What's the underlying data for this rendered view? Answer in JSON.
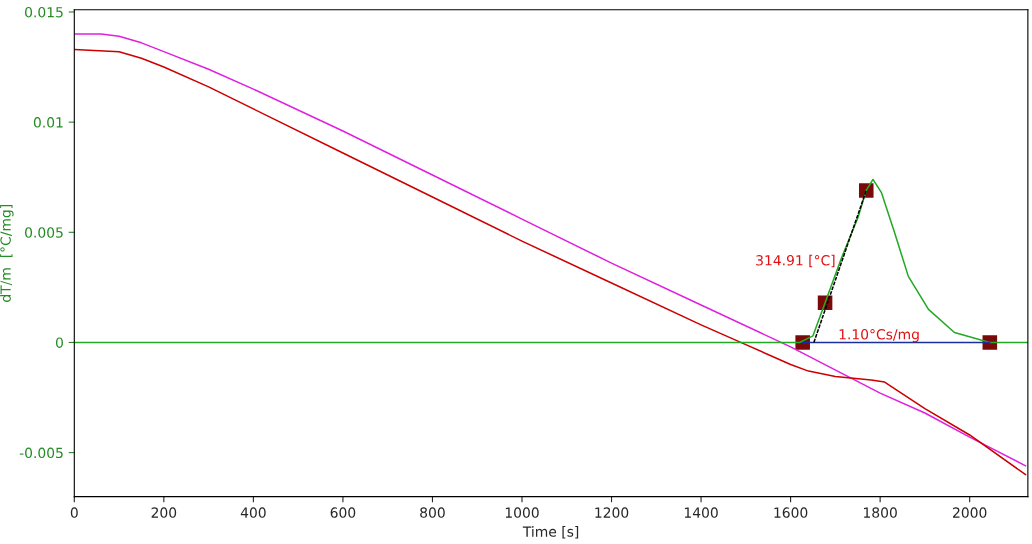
{
  "chart_data": {
    "type": "line",
    "xlabel": "Time [s]",
    "ylabel": "dT/m  [°C/mg]",
    "xlim": [
      0,
      2130
    ],
    "ylim": [
      -0.007,
      0.0151
    ],
    "xticks": [
      0,
      200,
      400,
      600,
      800,
      1000,
      1200,
      1400,
      1600,
      1800,
      2000
    ],
    "yticks": [
      {
        "value": -0.005,
        "label": "-0.005"
      },
      0,
      0.005,
      0.01,
      0.015
    ],
    "grid": false,
    "legend": false,
    "series": [
      {
        "color": "#e020e0",
        "x": [
          0,
          60,
          100,
          150,
          200,
          300,
          400,
          600,
          800,
          1000,
          1200,
          1400,
          1600,
          1800,
          1900,
          2000,
          2125
        ],
        "values": [
          0.014,
          0.014,
          0.0139,
          0.0136,
          0.0132,
          0.0124,
          0.0115,
          0.0096,
          0.0076,
          0.0056,
          0.0036,
          0.0017,
          -0.0002,
          -0.0023,
          -0.0032,
          -0.0043,
          -0.0056
        ]
      },
      {
        "color": "#cc0000",
        "x": [
          0,
          100,
          150,
          200,
          300,
          400,
          600,
          800,
          1000,
          1200,
          1400,
          1500,
          1600,
          1640,
          1700,
          1780,
          1810,
          1900,
          2000,
          2125
        ],
        "values": [
          0.0133,
          0.0132,
          0.0129,
          0.0125,
          0.0116,
          0.0106,
          0.0086,
          0.0066,
          0.0046,
          0.0027,
          0.0008,
          -0.0001,
          -0.001,
          -0.0013,
          -0.00155,
          -0.0017,
          -0.0018,
          -0.003,
          -0.0042,
          -0.006
        ]
      },
      {
        "color": "#22aa22",
        "x": [
          0,
          1620,
          1650,
          1677,
          1713,
          1751,
          1769,
          1784,
          1803,
          1832,
          1863,
          1908,
          1966,
          2045,
          2130
        ],
        "values": [
          0,
          0,
          0.0003,
          0.0018,
          0.0038,
          0.0057,
          0.0069,
          0.0074,
          0.0068,
          0.005,
          0.003,
          0.0015,
          0.00045,
          0,
          0
        ]
      },
      {
        "color": "#1a2fa0",
        "x": [
          1627,
          2045
        ],
        "values": [
          0,
          0
        ]
      },
      {
        "color": "#000000",
        "line_style": "dashed",
        "x": [
          1652,
          1769
        ],
        "values": [
          0,
          0.0069
        ]
      },
      {
        "type": "scatter",
        "marker": "square",
        "color": "#7a0a0a",
        "x": [
          1627,
          1677,
          1769,
          2045
        ],
        "values": [
          0,
          0.0018,
          0.0069,
          0
        ]
      }
    ],
    "annotations": [
      "314.91 [°C]",
      "1.10°Cs/mg"
    ]
  }
}
